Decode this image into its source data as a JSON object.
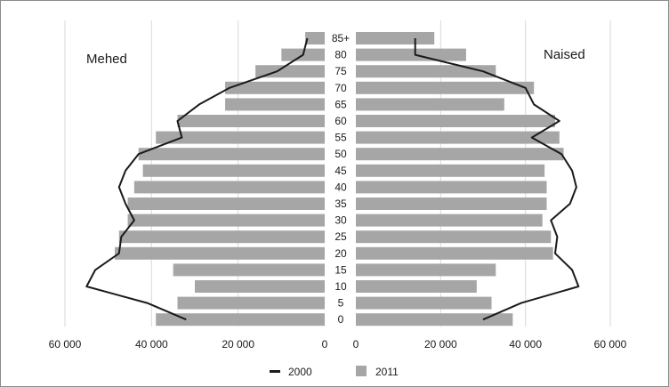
{
  "chart_data": {
    "type": "bar",
    "orientation": "horizontal",
    "layout": "population-pyramid",
    "categories": [
      "0",
      "5",
      "10",
      "15",
      "20",
      "25",
      "30",
      "35",
      "40",
      "45",
      "50",
      "55",
      "60",
      "65",
      "70",
      "75",
      "80",
      "85+"
    ],
    "left_label": "Mehed",
    "right_label": "Naised",
    "xlim": [
      0,
      60000
    ],
    "x_ticks": [
      "60 000",
      "40 000",
      "20 000",
      "0"
    ],
    "grid": true,
    "legend_position": "bottom",
    "series": [
      {
        "name": "2011",
        "kind": "bar",
        "color": "#a6a6a6",
        "male": [
          39000,
          34000,
          30000,
          35000,
          48500,
          47500,
          45500,
          45500,
          44000,
          42000,
          43000,
          39000,
          34000,
          23000,
          23000,
          16000,
          10000,
          4500
        ],
        "female": [
          37000,
          32000,
          28500,
          33000,
          46500,
          46000,
          44000,
          45000,
          45000,
          44500,
          49000,
          48000,
          47000,
          35000,
          42000,
          33000,
          26000,
          18500
        ]
      },
      {
        "name": "2000",
        "kind": "line",
        "color": "#1a1a1a",
        "male": [
          32000,
          41000,
          55000,
          53000,
          47500,
          47000,
          44000,
          46000,
          47500,
          46000,
          43000,
          33000,
          34000,
          29000,
          22000,
          11000,
          5000,
          4000
        ],
        "female": [
          30000,
          39000,
          52500,
          51000,
          47000,
          47500,
          46000,
          50500,
          52000,
          51000,
          48500,
          41500,
          48000,
          42000,
          40000,
          30000,
          14000,
          14000
        ]
      }
    ]
  }
}
